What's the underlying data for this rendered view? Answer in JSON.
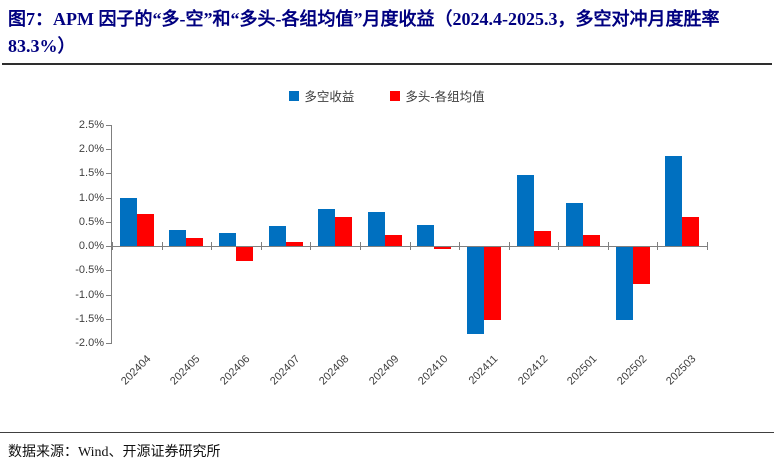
{
  "chart_data": {
    "type": "bar",
    "title": "图7：APM 因子的“多-空”和“多头-各组均值”月度收益（2024.4-2025.3，多空对冲月度胜率 83.3%）",
    "categories": [
      "202404",
      "202405",
      "202406",
      "202407",
      "202408",
      "202409",
      "202410",
      "202411",
      "202412",
      "202501",
      "202502",
      "202503"
    ],
    "series": [
      {
        "name": "多空收益",
        "color": "#0070C0",
        "values": [
          0.99,
          0.33,
          0.28,
          0.41,
          0.77,
          0.7,
          0.44,
          -1.8,
          1.47,
          0.9,
          -1.5,
          1.87
        ]
      },
      {
        "name": "多头-各组均值",
        "color": "#FF0000",
        "values": [
          0.66,
          0.16,
          -0.29,
          0.08,
          0.6,
          0.23,
          -0.04,
          -1.51,
          0.31,
          0.23,
          -0.77,
          0.6
        ]
      }
    ],
    "xlabel": "",
    "ylabel": "",
    "ylim": [
      -2.0,
      2.5
    ],
    "ytick_step": 0.5,
    "ytick_suffix": "%",
    "ytick_labels": [
      "2.5%",
      "2.0%",
      "1.5%",
      "1.0%",
      "0.5%",
      "0.0%",
      "-0.5%",
      "-1.0%",
      "-1.5%",
      "-2.0%"
    ],
    "legend_position": "top-center",
    "grid": false,
    "axis_color": "#7f7f7f",
    "label_color": "#404040"
  },
  "footer": {
    "source": "数据来源：Wind、开源证券研究所"
  }
}
